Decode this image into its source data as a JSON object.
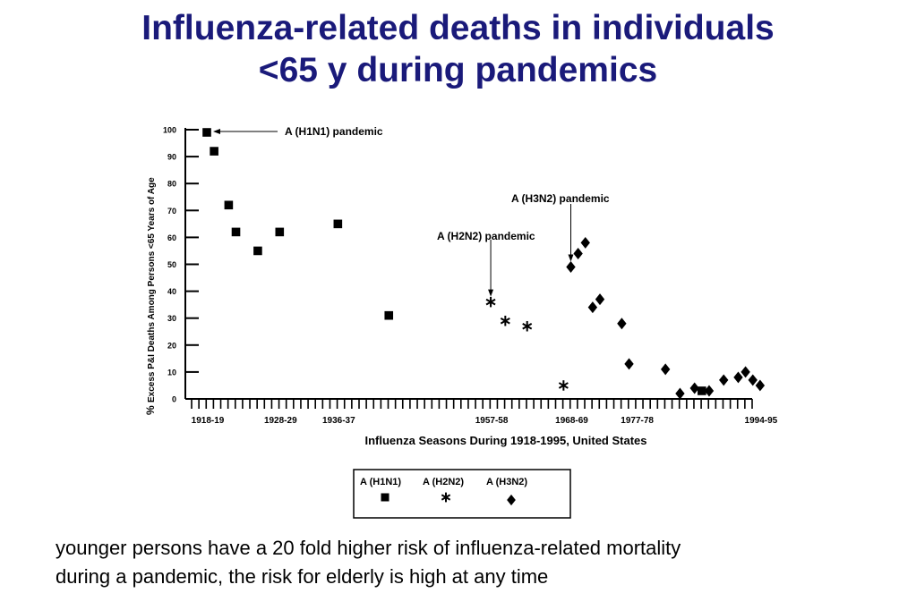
{
  "title": {
    "line1": "Influenza-related deaths in individuals",
    "line2": "<65 y during pandemics"
  },
  "caption": {
    "line1": "younger persons have a 20 fold higher risk of influenza-related mortality",
    "line2": "during a pandemic, the risk for elderly is high at any time"
  },
  "colors": {
    "title": "#1a1a7a",
    "ink": "#000000"
  },
  "chart_data": {
    "type": "scatter",
    "ylabel_prefix": "%",
    "ylabel": "Excess P&I Deaths Among Persons <65 Years of Age",
    "xlabel": "Influenza Seasons During 1918-1995, United States",
    "ylim": [
      0,
      100
    ],
    "yticks": [
      0,
      10,
      20,
      30,
      40,
      50,
      60,
      70,
      80,
      90,
      100
    ],
    "xlim": [
      1918,
      1995
    ],
    "xtick_labels": [
      "1918-19",
      "1928-29",
      "1936-37",
      "1957-58",
      "1968-69",
      "1977-78",
      "1994-95"
    ],
    "grid": false,
    "series": [
      {
        "name": "A (H1N1)",
        "marker": "square",
        "points": [
          {
            "x": 1918,
            "y": 99
          },
          {
            "x": 1919,
            "y": 92
          },
          {
            "x": 1921,
            "y": 72
          },
          {
            "x": 1922,
            "y": 62
          },
          {
            "x": 1925,
            "y": 55
          },
          {
            "x": 1928,
            "y": 62
          },
          {
            "x": 1936,
            "y": 65
          },
          {
            "x": 1943,
            "y": 31
          },
          {
            "x": 1986,
            "y": 3
          }
        ]
      },
      {
        "name": "A (H2N2)",
        "marker": "star",
        "points": [
          {
            "x": 1957,
            "y": 36
          },
          {
            "x": 1959,
            "y": 29
          },
          {
            "x": 1962,
            "y": 27
          },
          {
            "x": 1967,
            "y": 5
          }
        ]
      },
      {
        "name": "A (H3N2)",
        "marker": "diamond",
        "points": [
          {
            "x": 1968,
            "y": 49
          },
          {
            "x": 1969,
            "y": 54
          },
          {
            "x": 1970,
            "y": 58
          },
          {
            "x": 1971,
            "y": 34
          },
          {
            "x": 1972,
            "y": 37
          },
          {
            "x": 1975,
            "y": 28
          },
          {
            "x": 1976,
            "y": 13
          },
          {
            "x": 1981,
            "y": 11
          },
          {
            "x": 1983,
            "y": 2
          },
          {
            "x": 1985,
            "y": 4
          },
          {
            "x": 1987,
            "y": 3
          },
          {
            "x": 1989,
            "y": 7
          },
          {
            "x": 1991,
            "y": 8
          },
          {
            "x": 1992,
            "y": 10
          },
          {
            "x": 1993,
            "y": 7
          },
          {
            "x": 1994,
            "y": 5
          }
        ]
      }
    ],
    "annotations": [
      {
        "text": "A (H1N1) pandemic",
        "target_x": 1918,
        "target_y": 99
      },
      {
        "text": "A (H2N2) pandemic",
        "target_x": 1957,
        "target_y": 36
      },
      {
        "text": "A (H3N2) pandemic",
        "target_x": 1968,
        "target_y": 49
      }
    ],
    "legend": {
      "placement": "bottom",
      "entries": [
        "A (H1N1)",
        "A (H2N2)",
        "A (H3N2)"
      ]
    }
  }
}
